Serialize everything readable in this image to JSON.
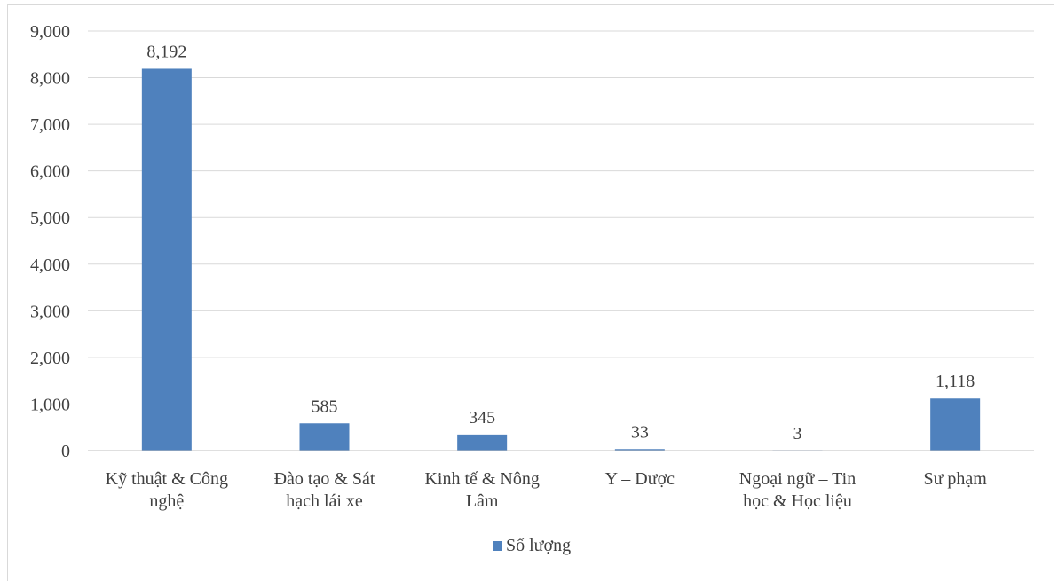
{
  "chart_data": {
    "type": "bar",
    "title": "",
    "xlabel": "",
    "ylabel": "",
    "categories": [
      [
        "Kỹ thuật & Công",
        "nghệ"
      ],
      [
        "Đào tạo & Sát",
        "hạch lái xe"
      ],
      [
        "Kinh tế & Nông",
        "Lâm"
      ],
      [
        "Y – Dược"
      ],
      [
        "Ngoại ngữ – Tin",
        "học & Học liệu"
      ],
      [
        "Sư phạm"
      ]
    ],
    "series": [
      {
        "name": "Số lượng",
        "values": [
          8192,
          585,
          345,
          33,
          3,
          1118
        ],
        "labels": [
          "8,192",
          "585",
          "345",
          "33",
          "3",
          "1,118"
        ],
        "color": "#4f81bd"
      }
    ],
    "ylim": [
      0,
      9000
    ],
    "yticks": [
      0,
      1000,
      2000,
      3000,
      4000,
      5000,
      6000,
      7000,
      8000,
      9000
    ],
    "ytick_labels": [
      "0",
      "1,000",
      "2,000",
      "3,000",
      "4,000",
      "5,000",
      "6,000",
      "7,000",
      "8,000",
      "9,000"
    ],
    "grid": true,
    "gridline_color": "#d9d9d9",
    "axis_color": "#bfbfbf",
    "legend_position": "bottom"
  }
}
